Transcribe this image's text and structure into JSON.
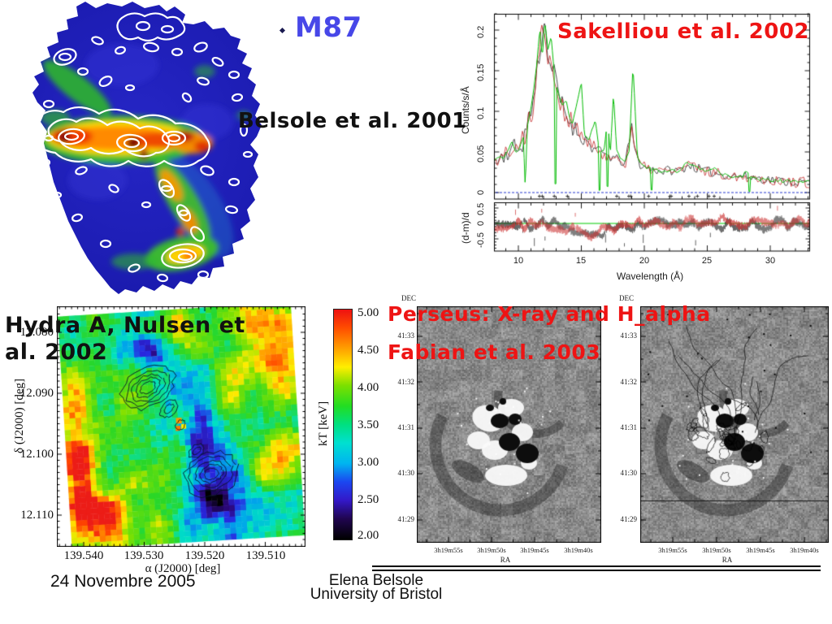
{
  "slide": {
    "title": "M87",
    "title_color": "#4747e8",
    "accent_red": "#ee1414",
    "citations": {
      "belsole": "Belsole et al. 2001",
      "sakelliou": "Sakelliou et al. 2002",
      "hydra_line1": "Hydra A, Nulsen et",
      "hydra_line2": "al. 2002",
      "perseus_title": "Perseus: X-ray and H_alpha",
      "fabian": "Fabian et al. 2003"
    },
    "footer": {
      "date": "24 Novembre 2005",
      "author": "Elena Belsole",
      "affiliation": "University of Bristol"
    }
  },
  "chart_data": [
    {
      "type": "line",
      "name": "M87 X-ray grating spectrum",
      "xlabel": "Wavelength (Å)",
      "ylabel": "Counts/s/Å",
      "ylabel_residual": "(d-m)/d",
      "xlim": [
        8,
        33.2
      ],
      "xticks": [
        10,
        15,
        20,
        25,
        30
      ],
      "ytick_labels": [
        "0.2",
        "0.15",
        "0.1",
        "0.05",
        "0"
      ],
      "yticks": [
        0.2,
        0.15,
        0.1,
        0.05,
        0
      ],
      "residual_tick_labels": [
        "0.5",
        "0",
        "-0.5"
      ],
      "residual_ylim": [
        -0.9,
        0.7
      ],
      "grid": false,
      "series": [
        {
          "name": "model",
          "color": "#00bb00",
          "x": [
            8,
            8.4,
            8.8,
            9.2,
            9.5,
            9.8,
            10.1,
            10.4,
            10.55,
            10.7,
            11,
            11.2,
            11.45,
            11.7,
            11.9,
            12.1,
            12.35,
            12.6,
            12.95,
            13.2,
            13.5,
            13.8,
            14.05,
            14.3,
            14.6,
            15,
            15.25,
            15.6,
            16.1,
            16.45,
            16.8,
            17.1,
            17.3,
            17.55,
            17.8,
            18.1,
            18.5,
            18.8,
            19.1,
            19.45,
            19.8,
            20.3,
            20.9,
            21.5,
            22,
            22.5,
            23,
            23.4,
            24,
            24.5,
            25,
            25.6,
            26.2,
            27,
            27.8,
            28,
            28.6,
            29.4,
            30.2,
            31,
            31.8,
            32.6,
            33.4,
            33.8
          ],
          "y": [
            0.035,
            0.045,
            0.04,
            0.052,
            0.062,
            0.05,
            0.056,
            0.07,
            0.004,
            0.08,
            0.105,
            0.125,
            0.155,
            0.2,
            0.165,
            0.21,
            0.175,
            0.19,
            0.135,
            0.12,
            0.105,
            0.115,
            0.095,
            0.085,
            0.105,
            0.135,
            0.07,
            0.063,
            0.09,
            0.05,
            0.052,
            0.09,
            0.047,
            0.12,
            0.055,
            0.042,
            0.04,
            0.05,
            0.155,
            0.045,
            0.033,
            0.03,
            0.028,
            0.026,
            0.028,
            0.025,
            0.03,
            0.038,
            0.032,
            0.028,
            0.026,
            0.031,
            0.022,
            0.02,
            0.019,
            0.028,
            0.018,
            0.016,
            0.015,
            0.014,
            0.015,
            0.013,
            0.014,
            0.012
          ]
        },
        {
          "name": "data (red, noisy)",
          "color": "#c22222",
          "x": [
            8,
            8.5,
            9,
            9.5,
            10,
            10.5,
            10.8,
            11.1,
            11.5,
            11.8,
            12.1,
            12.4,
            12.8,
            13.2,
            13.6,
            14,
            14.5,
            15,
            15.5,
            16,
            16.5,
            17,
            17.5,
            18,
            18.5,
            19,
            19.3,
            19.7,
            20,
            20.5,
            21,
            21.5,
            22,
            22.5,
            23,
            23.5,
            24,
            24.5,
            25,
            26,
            27,
            28,
            29,
            30,
            31,
            32,
            33,
            33.8
          ],
          "y": [
            0.033,
            0.042,
            0.047,
            0.055,
            0.052,
            0.07,
            0.09,
            0.105,
            0.15,
            0.19,
            0.205,
            0.17,
            0.145,
            0.12,
            0.1,
            0.09,
            0.078,
            0.07,
            0.062,
            0.054,
            0.049,
            0.046,
            0.043,
            0.039,
            0.037,
            0.08,
            0.048,
            0.034,
            0.031,
            0.029,
            0.028,
            0.026,
            0.028,
            0.026,
            0.029,
            0.034,
            0.031,
            0.028,
            0.026,
            0.023,
            0.021,
            0.02,
            0.018,
            0.016,
            0.014,
            0.013,
            0.012,
            0.011
          ]
        },
        {
          "name": "data (black, noisy)",
          "color": "#222222",
          "note": "same values as red series with independent noise"
        },
        {
          "name": "zero baseline",
          "color": "#2233cc",
          "style": "dashed"
        }
      ],
      "residual": {
        "description": "residuals scatter about 0 within ±0.5, dipping to -0.5 near 15-17 Å",
        "zero_line_color": "#00cc00"
      }
    },
    {
      "type": "heatmap",
      "name": "Hydra A temperature map",
      "xlabel": "α (J2000) [deg]",
      "ylabel": "δ (J2000) [deg]",
      "xtick_labels": [
        "139.540",
        "139.530",
        "139.520",
        "139.510"
      ],
      "ytick_labels": [
        "12.080",
        "12.090",
        "12.100",
        "12.110"
      ],
      "colorbar": {
        "label": "kT [keV]",
        "tick_labels": [
          "5.00",
          "4.50",
          "4.00",
          "3.50",
          "3.00",
          "2.50",
          "2.00"
        ],
        "range": [
          2.0,
          5.0
        ],
        "colors_top_to_bottom": [
          "#ee1111",
          "#ffa000",
          "#ffee00",
          "#22dd22",
          "#00e0d0",
          "#1b46f0",
          "#3318c8",
          "#000000"
        ]
      },
      "description": "kT mostly 3.5-4 keV (green); cooler 2.5-3 keV (blue) along NE-SW radio source shown by black contours; hotter ~5 keV (red) patches near field edges."
    },
    {
      "type": "heatmap",
      "name": "Perseus unsharp-masked X-ray images",
      "panels": [
        {
          "label": "X-ray"
        },
        {
          "label": "X-ray with H_alpha contours and horizontal cut line"
        }
      ],
      "xlabel": "RA",
      "ylabel": "DEC",
      "xtick_labels": [
        "3h19m55s",
        "3h19m50s",
        "3h19m45s",
        "3h19m40s"
      ],
      "ytick_labels": [
        "41:33",
        "41:32",
        "41:31",
        "41:30",
        "41:29"
      ],
      "description": "Grayscale residual images of ripples and cavities around NGC 1275; right panel repeats left with dark H-alpha filament contours."
    }
  ]
}
